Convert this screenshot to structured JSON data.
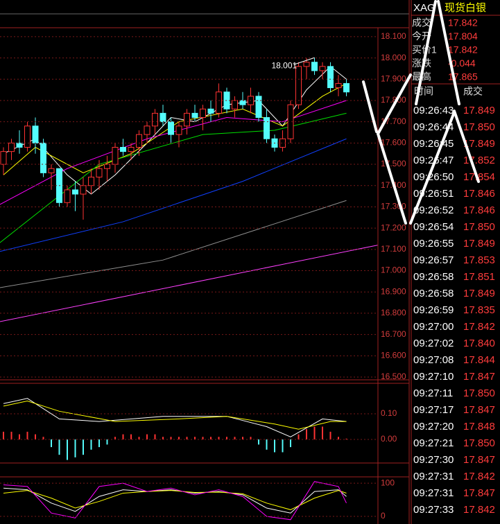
{
  "chart_data": [
    {
      "type": "candlestick",
      "max_label": "18.001",
      "up_color": "#ff3232",
      "down_color": "#54fcfc",
      "open": [
        17.5,
        17.56,
        17.6,
        17.58,
        17.68,
        17.6,
        17.46,
        17.48,
        17.32,
        17.38,
        17.36,
        17.4,
        17.44,
        17.48,
        17.5,
        17.58,
        17.56,
        17.58,
        17.64,
        17.68,
        17.74,
        17.7,
        17.64,
        17.68,
        17.74,
        17.72,
        17.76,
        17.74,
        17.84,
        17.76,
        17.8,
        17.78,
        17.82,
        17.72,
        17.62,
        17.58,
        17.62,
        17.78,
        17.96,
        17.98,
        17.94,
        17.96,
        17.86,
        17.88
      ],
      "high": [
        17.58,
        17.62,
        17.66,
        17.7,
        17.72,
        17.62,
        17.5,
        17.48,
        17.4,
        17.42,
        17.44,
        17.48,
        17.52,
        17.54,
        17.6,
        17.62,
        17.6,
        17.66,
        17.7,
        17.76,
        17.78,
        17.72,
        17.7,
        17.76,
        17.78,
        17.78,
        17.8,
        17.88,
        17.86,
        17.82,
        17.84,
        17.86,
        17.84,
        17.76,
        17.64,
        17.66,
        17.8,
        17.98,
        18.0,
        18.001,
        17.98,
        17.98,
        17.92,
        17.9
      ],
      "low": [
        17.45,
        17.52,
        17.55,
        17.56,
        17.55,
        17.44,
        17.38,
        17.3,
        17.3,
        17.28,
        17.24,
        17.36,
        17.38,
        17.42,
        17.46,
        17.54,
        17.52,
        17.54,
        17.6,
        17.64,
        17.68,
        17.6,
        17.58,
        17.64,
        17.7,
        17.66,
        17.7,
        17.72,
        17.74,
        17.72,
        17.76,
        17.74,
        17.7,
        17.6,
        17.56,
        17.56,
        17.6,
        17.76,
        17.9,
        17.92,
        17.9,
        17.84,
        17.82,
        17.82
      ],
      "close": [
        17.56,
        17.6,
        17.58,
        17.68,
        17.6,
        17.46,
        17.48,
        17.32,
        17.38,
        17.36,
        17.4,
        17.44,
        17.48,
        17.5,
        17.58,
        17.56,
        17.58,
        17.64,
        17.68,
        17.74,
        17.7,
        17.64,
        17.68,
        17.74,
        17.72,
        17.76,
        17.74,
        17.84,
        17.76,
        17.8,
        17.78,
        17.82,
        17.72,
        17.62,
        17.58,
        17.62,
        17.78,
        17.96,
        17.98,
        17.94,
        17.96,
        17.86,
        17.88,
        17.84
      ],
      "lines": [
        {
          "color": "#ffffff",
          "x": [
            0,
            4,
            8,
            11,
            14,
            18,
            21,
            24,
            28,
            32,
            35,
            38,
            41,
            43
          ],
          "values": [
            17.55,
            17.62,
            17.45,
            17.36,
            17.45,
            17.6,
            17.72,
            17.7,
            17.78,
            17.8,
            17.68,
            17.85,
            17.96,
            17.9
          ]
        },
        {
          "color": "#ffff00",
          "x": [
            0,
            4,
            10,
            16,
            22,
            30,
            35,
            40,
            43
          ],
          "values": [
            17.45,
            17.58,
            17.46,
            17.55,
            17.7,
            17.76,
            17.68,
            17.82,
            17.88
          ]
        },
        {
          "color": "#ff00ff",
          "x": [
            -0.5,
            8,
            18,
            28,
            35,
            43
          ],
          "values": [
            17.31,
            17.48,
            17.62,
            17.72,
            17.7,
            17.8
          ]
        },
        {
          "color": "#00e000",
          "x": [
            -0.5,
            12,
            25,
            34,
            43
          ],
          "values": [
            17.13,
            17.5,
            17.64,
            17.66,
            17.74
          ]
        },
        {
          "color": "#1040ff",
          "x": [
            -0.5,
            15,
            30,
            43
          ],
          "values": [
            17.09,
            17.23,
            17.42,
            17.62
          ]
        },
        {
          "color": "#909090",
          "x": [
            -0.5,
            20,
            43
          ],
          "values": [
            16.92,
            17.05,
            17.33
          ]
        },
        {
          "color": "#ff40ff",
          "x": [
            -0.5,
            46.9
          ],
          "values": [
            16.76,
            17.12
          ]
        }
      ],
      "ylim": [
        16.487,
        18.142
      ],
      "yticks": [
        {
          "value": 16.5,
          "label": "16.500"
        },
        {
          "value": 16.6,
          "label": "16.600"
        },
        {
          "value": 16.7,
          "label": "16.700"
        },
        {
          "value": 16.8,
          "label": "16.800"
        },
        {
          "value": 16.9,
          "label": "16.900"
        },
        {
          "value": 17.0,
          "label": "17.000"
        },
        {
          "value": 17.1,
          "label": "17.100"
        },
        {
          "value": 17.2,
          "label": "17.200"
        },
        {
          "value": 17.3,
          "label": "17.300"
        },
        {
          "value": 17.4,
          "label": "17.400"
        },
        {
          "value": 17.5,
          "label": "17.500"
        },
        {
          "value": 17.6,
          "label": "17.600"
        },
        {
          "value": 17.7,
          "label": "17.700"
        },
        {
          "value": 17.8,
          "label": "17.800"
        },
        {
          "value": 17.9,
          "label": "17.900"
        },
        {
          "value": 18.0,
          "label": "18.000"
        },
        {
          "value": 18.1,
          "label": "18.100"
        }
      ]
    },
    {
      "type": "macd",
      "pos_color": "#ff3232",
      "neg_color": "#54fcfc",
      "values": [
        0.03,
        0.03,
        0.02,
        0.03,
        0.02,
        0.01,
        -0.03,
        -0.06,
        -0.08,
        -0.07,
        -0.06,
        -0.04,
        -0.03,
        -0.02,
        0.01,
        0.02,
        0.02,
        0.01,
        0.02,
        0.02,
        0.01,
        0.01,
        0.01,
        0.01,
        0.01,
        0.01,
        0.01,
        0.01,
        0.01,
        0.01,
        0.01,
        0.01,
        -0.02,
        -0.04,
        -0.05,
        -0.05,
        -0.03,
        0.02,
        0.04,
        0.05,
        0.05,
        0.03,
        0.01,
        0.003
      ],
      "series": [
        {
          "color": "#ffffff",
          "x": [
            0,
            3,
            7,
            12,
            20,
            28,
            33,
            36,
            40,
            43
          ],
          "values": [
            0.14,
            0.16,
            0.08,
            0.07,
            0.09,
            0.09,
            0.05,
            0.01,
            0.08,
            0.07
          ]
        },
        {
          "color": "#ffff00",
          "x": [
            0,
            3,
            7,
            14,
            22,
            28,
            34,
            37,
            41,
            43
          ],
          "values": [
            0.13,
            0.15,
            0.11,
            0.07,
            0.08,
            0.09,
            0.06,
            0.04,
            0.07,
            0.07
          ]
        }
      ],
      "ylim": [
        -0.092,
        0.219
      ],
      "yticks": [
        {
          "value": 0.1,
          "label": "0.10"
        },
        {
          "value": 0,
          "label": "0.00"
        }
      ]
    },
    {
      "type": "line",
      "series": [
        {
          "color": "#ffffff",
          "x": [
            0,
            3,
            6,
            9,
            12,
            15,
            18,
            21,
            24,
            27,
            30,
            33,
            36,
            39,
            42,
            43
          ],
          "values": [
            85,
            80,
            40,
            15,
            60,
            80,
            75,
            80,
            70,
            75,
            65,
            25,
            10,
            75,
            80,
            60
          ]
        },
        {
          "color": "#ffff00",
          "x": [
            0,
            3,
            6,
            9,
            12,
            15,
            18,
            21,
            24,
            27,
            30,
            33,
            36,
            39,
            42,
            43
          ],
          "values": [
            70,
            78,
            55,
            25,
            45,
            70,
            75,
            78,
            72,
            73,
            68,
            40,
            20,
            55,
            78,
            70
          ]
        },
        {
          "color": "#ff00ff",
          "x": [
            0,
            3,
            6,
            9,
            12,
            15,
            18,
            21,
            24,
            27,
            30,
            33,
            36,
            39,
            42,
            43
          ],
          "values": [
            95,
            90,
            10,
            -5,
            90,
            100,
            75,
            85,
            65,
            80,
            60,
            0,
            -10,
            105,
            90,
            40
          ]
        }
      ],
      "ylim": [
        -23,
        119
      ],
      "yticks": [
        100,
        0
      ]
    }
  ],
  "header": {
    "code": "XAG",
    "name": "现货白银"
  },
  "quote": [
    [
      "成交",
      "17.842"
    ],
    [
      "今开",
      "17.804"
    ],
    [
      "买价1",
      "17.842"
    ],
    [
      "涨跌",
      "-0.044"
    ],
    [
      "最高",
      "17.865"
    ]
  ],
  "trades": {
    "columns": [
      "时间",
      "成交"
    ],
    "rows": [
      [
        "09:26:43",
        "17.849"
      ],
      [
        "09:26:44",
        "17.850"
      ],
      [
        "09:26:45",
        "17.849"
      ],
      [
        "09:26:47",
        "17.852"
      ],
      [
        "09:26:50",
        "17.854"
      ],
      [
        "09:26:51",
        "17.846"
      ],
      [
        "09:26:52",
        "17.846"
      ],
      [
        "09:26:54",
        "17.850"
      ],
      [
        "09:26:55",
        "17.849"
      ],
      [
        "09:26:57",
        "17.853"
      ],
      [
        "09:26:58",
        "17.851"
      ],
      [
        "09:26:58",
        "17.849"
      ],
      [
        "09:26:59",
        "17.835"
      ],
      [
        "09:27:00",
        "17.842"
      ],
      [
        "09:27:02",
        "17.840"
      ],
      [
        "09:27:08",
        "17.844"
      ],
      [
        "09:27:10",
        "17.847"
      ],
      [
        "09:27:11",
        "17.850"
      ],
      [
        "09:27:17",
        "17.847"
      ],
      [
        "09:27:20",
        "17.848"
      ],
      [
        "09:27:21",
        "17.850"
      ],
      [
        "09:27:30",
        "17.847"
      ],
      [
        "09:27:31",
        "17.842"
      ],
      [
        "09:27:31",
        "17.847"
      ],
      [
        "09:27:33",
        "17.842"
      ]
    ]
  }
}
